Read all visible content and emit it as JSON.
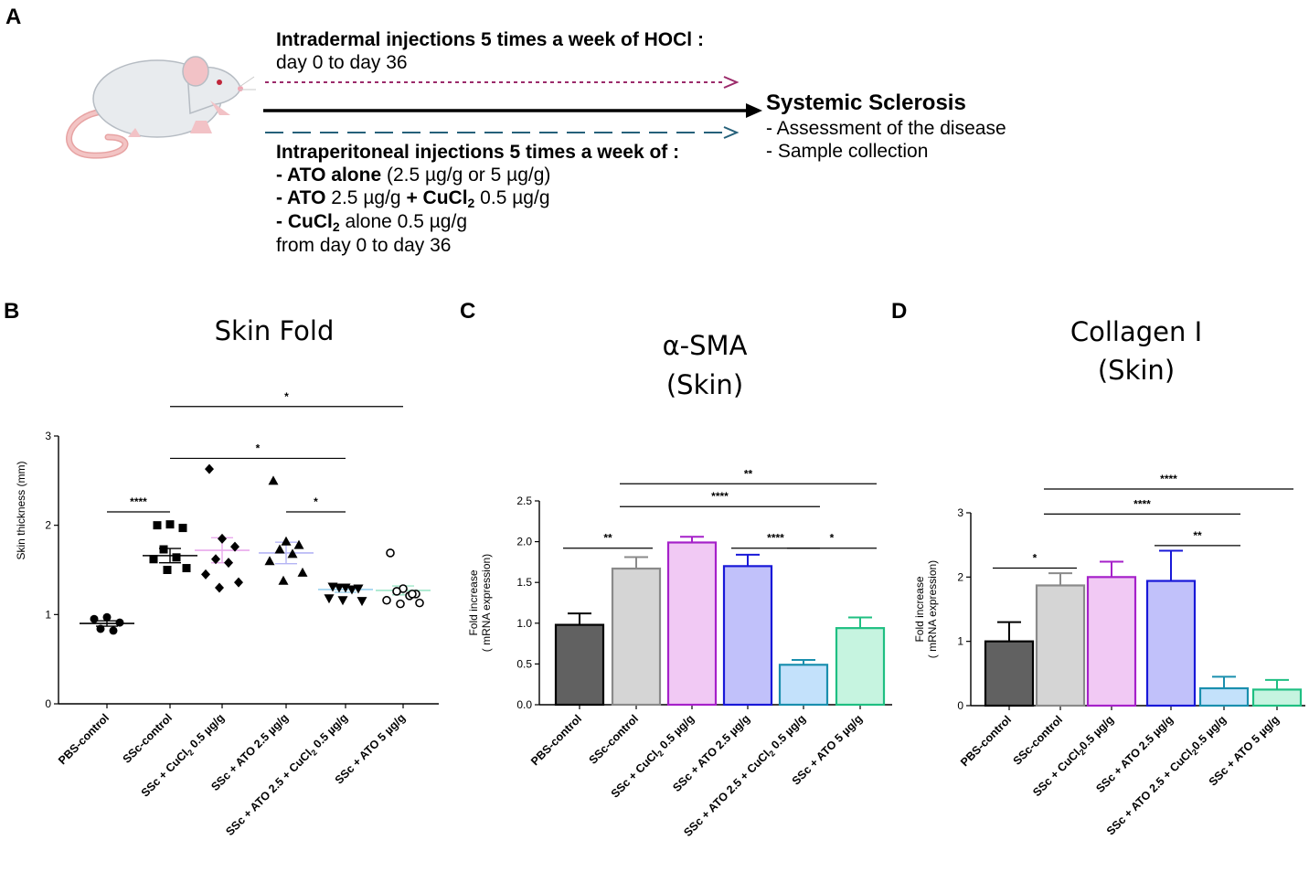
{
  "panel_a": {
    "label": "A",
    "hocl_title": "Intradermal injections 5 times a week of HOCl :",
    "hocl_period": "day 0 to day 36",
    "ip_title": "Intraperitoneal injections 5 times a week of :",
    "ip_lines": [
      {
        "bold": "- ATO alone",
        "rest": " (2.5 µg/g or 5 µg/g)"
      },
      {
        "bold": "- ATO",
        "rest": " 2.5 µg/g ",
        "bold2": "+ CuCl",
        "sub": "2",
        "rest2": " 0.5 µg/g"
      },
      {
        "bold": "- CuCl",
        "sub": "2",
        "rest": " alone 0.5 µg/g"
      }
    ],
    "ip_period": "from day 0 to day 36",
    "outcome_title": "Systemic Sclerosis",
    "outcome_items": [
      "- Assessment of the disease",
      "- Sample collection"
    ],
    "colors": {
      "hocl_arrow": "#9b2a6a",
      "ip_arrow": "#25607a",
      "main_arrow": "#000000"
    }
  },
  "chart_data": [
    {
      "panel": "B",
      "type": "scatter",
      "title": "Skin Fold",
      "ylabel": "Skin thickness (mm)",
      "ylim": [
        0,
        3
      ],
      "yticks": [
        "0",
        "1",
        "2",
        "3"
      ],
      "categories": [
        "PBS-control",
        "SSc-control",
        "SSc + CuCl₂ 0.5 µg/g",
        "SSc + ATO 2.5 µg/g",
        "SSc + ATO 2.5 + CuCl₂ 0.5 µg/g",
        "SSc + ATO 5 µg/g"
      ],
      "series": [
        {
          "name": "PBS-control",
          "marker": "circle",
          "mean": 0.9,
          "sem": 0.03,
          "points": [
            0.95,
            0.97,
            0.91,
            0.84,
            0.82
          ]
        },
        {
          "name": "SSc-control",
          "marker": "square",
          "mean": 1.66,
          "sem": 0.08,
          "points": [
            2.0,
            2.01,
            1.97,
            1.73,
            1.64,
            1.62,
            1.52,
            1.5
          ]
        },
        {
          "name": "SSc + CuCl₂ 0.5 µg/g",
          "marker": "diamond",
          "mean": 1.72,
          "sem": 0.14,
          "points": [
            2.63,
            1.85,
            1.76,
            1.62,
            1.58,
            1.45,
            1.36,
            1.3
          ]
        },
        {
          "name": "SSc + ATO 2.5 µg/g",
          "marker": "triangle",
          "mean": 1.69,
          "sem": 0.12,
          "points": [
            2.5,
            1.82,
            1.78,
            1.73,
            1.68,
            1.6,
            1.47,
            1.38
          ]
        },
        {
          "name": "SSc + ATO 2.5 + CuCl₂ 0.5 µg/g",
          "marker": "triangle-down",
          "mean": 1.28,
          "sem": 0.03,
          "points": [
            1.31,
            1.3,
            1.29,
            1.3,
            1.28,
            1.18,
            1.15,
            1.16
          ]
        },
        {
          "name": "SSc + ATO 5 µg/g",
          "marker": "open-circle",
          "mean": 1.27,
          "sem": 0.05,
          "points": [
            1.69,
            1.29,
            1.23,
            1.26,
            1.21,
            1.16,
            1.13,
            1.12,
            1.23
          ]
        }
      ],
      "colors": [
        "#000000",
        "#000000",
        "#e9a9ec",
        "#b4b4f4",
        "#9ad0ee",
        "#9ee6c8"
      ],
      "significance": [
        {
          "from": 0,
          "to": 1,
          "y": 2.15,
          "label": "****"
        },
        {
          "from": 1,
          "to": 4,
          "y": 2.75,
          "label": "*"
        },
        {
          "from": 1,
          "to": 5,
          "y": 3.33,
          "label": "*"
        },
        {
          "from": 3,
          "to": 4,
          "y": 2.15,
          "label": "*"
        }
      ]
    },
    {
      "panel": "C",
      "type": "bar",
      "title": "α-SMA",
      "subtitle": "(Skin)",
      "ylabel": "Fold increase",
      "ylabel2": "( mRNA expression)",
      "ylim": [
        0,
        2.5
      ],
      "yticks": [
        "0.0",
        "0.5",
        "1.0",
        "1.5",
        "2.0",
        "2.5"
      ],
      "categories": [
        "PBS-control",
        "SSc-control",
        "SSc + CuCl₂ 0.5 µg/g",
        "SSc + ATO 2.5 µg/g",
        "SSc + ATO 2.5 + CuCl₂ 0.5 µg/g",
        "SSc + ATO 5 µg/g"
      ],
      "values": [
        0.98,
        1.67,
        1.99,
        1.7,
        0.49,
        0.94
      ],
      "errors": [
        0.14,
        0.14,
        0.07,
        0.14,
        0.06,
        0.13
      ],
      "fill_colors": [
        "#616161",
        "#d5d5d5",
        "#f1c9f4",
        "#c1c1fa",
        "#c3e1fb",
        "#c6f4e0"
      ],
      "edge_colors": [
        "#000000",
        "#8a8a8a",
        "#a621c9",
        "#1818d8",
        "#1a8fae",
        "#1fbf82"
      ],
      "significance": [
        {
          "from": 0,
          "to": 1,
          "y": 1.92,
          "label": "**"
        },
        {
          "from": 1,
          "to": 4,
          "y": 2.43,
          "label": "****"
        },
        {
          "from": 1,
          "to": 5,
          "y": 2.71,
          "label": "**"
        },
        {
          "from": 3,
          "to": 4,
          "y": 1.92,
          "label": "****"
        },
        {
          "from": 4,
          "to": 5,
          "y": 1.92,
          "label": "*"
        }
      ]
    },
    {
      "panel": "D",
      "type": "bar",
      "title": "Collagen I",
      "subtitle": "(Skin)",
      "ylabel": "Fold increase",
      "ylabel2": "( mRNA expression)",
      "ylim": [
        0,
        3
      ],
      "yticks": [
        "0",
        "1",
        "2",
        "3"
      ],
      "categories": [
        "PBS-control",
        "SSc-control",
        "SSc + CuCl₂0.5 µg/g",
        "SSc + ATO 2.5 µg/g",
        "SSc + ATO 2.5 + CuCl₂0.5 µg/g",
        "SSc + ATO 5 µg/g"
      ],
      "values": [
        1.0,
        1.87,
        2.0,
        1.94,
        0.27,
        0.25
      ],
      "errors": [
        0.3,
        0.19,
        0.24,
        0.47,
        0.18,
        0.15
      ],
      "fill_colors": [
        "#616161",
        "#d5d5d5",
        "#f1c9f4",
        "#c1c1fa",
        "#c3e1fb",
        "#c6f4e0"
      ],
      "edge_colors": [
        "#000000",
        "#8a8a8a",
        "#a621c9",
        "#1818d8",
        "#1a8fae",
        "#1fbf82"
      ],
      "significance": [
        {
          "from": 0,
          "to": 1,
          "y": 2.14,
          "label": "*"
        },
        {
          "from": 1,
          "to": 4,
          "y": 2.98,
          "label": "****"
        },
        {
          "from": 1,
          "to": 5,
          "y": 3.37,
          "label": "****"
        },
        {
          "from": 3,
          "to": 4,
          "y": 2.49,
          "label": "**"
        }
      ]
    }
  ]
}
